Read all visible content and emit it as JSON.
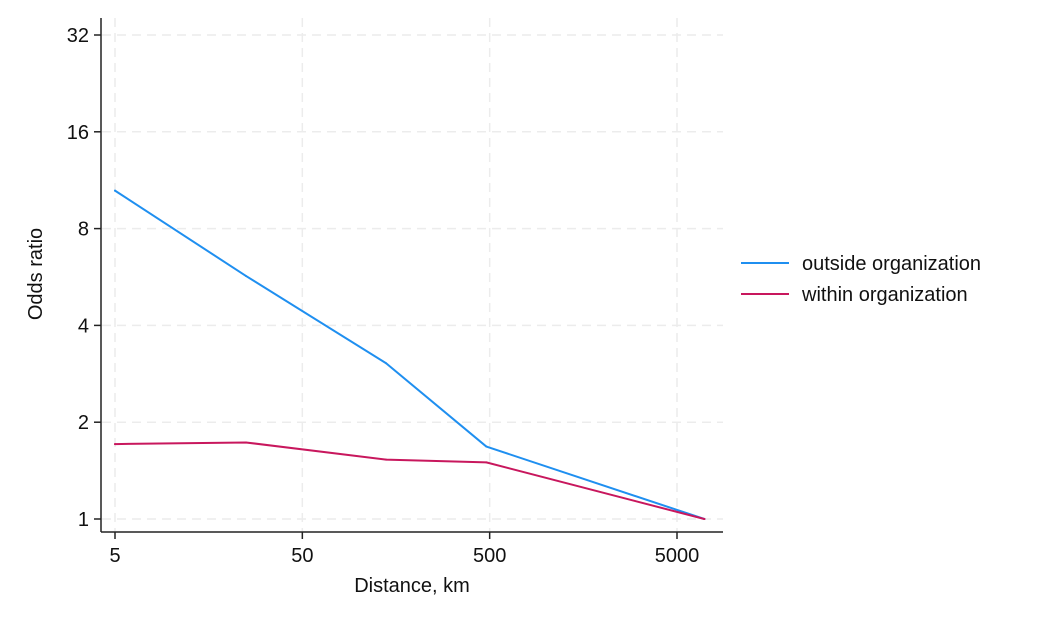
{
  "chart_data": {
    "type": "line",
    "title": "",
    "xlabel": "Distance, km",
    "ylabel": "Odds ratio",
    "x_scale": "log",
    "y_scale": "log2",
    "xlim": [
      4.2,
      9000
    ],
    "ylim": [
      0.93,
      34
    ],
    "x_ticks": [
      {
        "value": 5,
        "label": "5"
      },
      {
        "value": 50,
        "label": "50"
      },
      {
        "value": 500,
        "label": "500"
      },
      {
        "value": 5000,
        "label": "5000"
      }
    ],
    "y_ticks": [
      {
        "value": 1,
        "label": "1"
      },
      {
        "value": 2,
        "label": "2"
      },
      {
        "value": 4,
        "label": "4"
      },
      {
        "value": 8,
        "label": "8"
      },
      {
        "value": 16,
        "label": "16"
      },
      {
        "value": 32,
        "label": "32"
      }
    ],
    "grid": true,
    "legend_position": "right",
    "series": [
      {
        "name": "outside organization",
        "color": "#1f8ff0",
        "x": [
          5,
          25,
          140,
          480,
          7000
        ],
        "y": [
          10.5,
          5.7,
          3.05,
          1.68,
          1.0
        ]
      },
      {
        "name": "within organization",
        "color": "#c8175d",
        "x": [
          5,
          25,
          140,
          480,
          7000
        ],
        "y": [
          1.71,
          1.73,
          1.53,
          1.5,
          1.0
        ]
      }
    ]
  }
}
